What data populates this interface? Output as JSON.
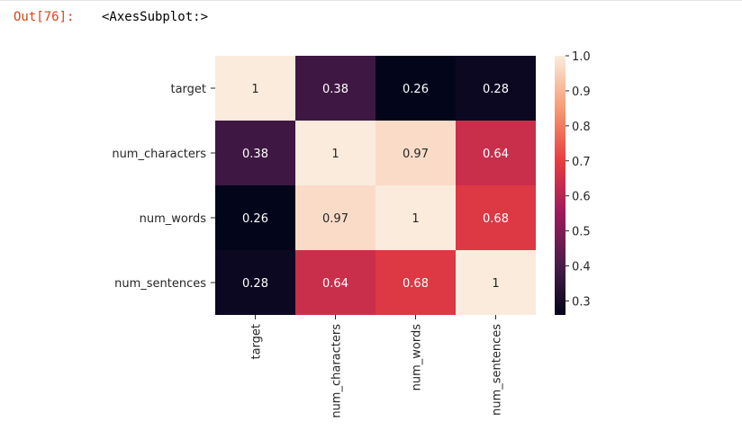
{
  "cell": {
    "prompt": "Out[76]:",
    "output_repr": "<AxesSubplot:>"
  },
  "chart_data": {
    "type": "heatmap",
    "row_labels": [
      "target",
      "num_characters",
      "num_words",
      "num_sentences"
    ],
    "col_labels": [
      "target",
      "num_characters",
      "num_words",
      "num_sentences"
    ],
    "values": [
      [
        1,
        0.38,
        0.26,
        0.28
      ],
      [
        0.38,
        1,
        0.97,
        0.64
      ],
      [
        0.26,
        0.97,
        1,
        0.68
      ],
      [
        0.28,
        0.64,
        0.68,
        1
      ]
    ],
    "annotations": [
      [
        "1",
        "0.38",
        "0.26",
        "0.28"
      ],
      [
        "0.38",
        "1",
        "0.97",
        "0.64"
      ],
      [
        "0.26",
        "0.97",
        "1",
        "0.68"
      ],
      [
        "0.28",
        "0.64",
        "0.68",
        "1"
      ]
    ],
    "colorbar": {
      "vmin": 0.26,
      "vmax": 1.0,
      "ticks": [
        1.0,
        0.9,
        0.8,
        0.7,
        0.6,
        0.5,
        0.4,
        0.3
      ],
      "tick_labels": [
        "1.0",
        "0.9",
        "0.8",
        "0.7",
        "0.6",
        "0.5",
        "0.4",
        "0.3"
      ]
    },
    "colormap": "rocket",
    "colormap_stops": [
      "#03051a",
      "#4c1d4b",
      "#a11a5b",
      "#e83f3f",
      "#f69c73",
      "#faebdd"
    ]
  }
}
